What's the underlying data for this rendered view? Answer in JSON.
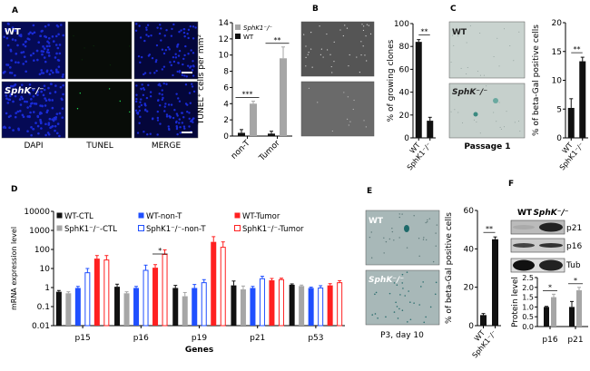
{
  "panels": {
    "A": {
      "label": "A",
      "row_labels": [
        "WT",
        "SphK⁻/⁻"
      ],
      "column_labels": [
        "DAPI",
        "TUNEL",
        "MERGE"
      ]
    },
    "B": {
      "label": "B"
    },
    "C": {
      "label": "C",
      "row_labels": [
        "WT",
        "SphK⁻/⁻"
      ],
      "caption": "Passage 1"
    },
    "D": {
      "label": "D"
    },
    "E": {
      "label": "E",
      "row_labels": [
        "WT",
        "SphK⁻/⁻"
      ],
      "caption": "P3, day 10"
    },
    "F": {
      "label": "F",
      "blot_column_labels": [
        "WT",
        "SphK⁻/⁻"
      ],
      "blot_row_labels": [
        "p21",
        "p16",
        "Tub"
      ]
    }
  },
  "colors": {
    "black": "#111111",
    "gray": "#a6a6a6",
    "blue": "#1f4fff",
    "red": "#ff2020",
    "dapi": "#1a2bd6"
  },
  "chart_data": [
    {
      "id": "A",
      "type": "bar",
      "title": "",
      "ylabel": "TUNEL⁺ cells per mm²",
      "xlabel": "",
      "ylim": [
        0,
        14
      ],
      "yticks": [
        "0",
        "2",
        "4",
        "6",
        "8",
        "10",
        "12",
        "14"
      ],
      "categories": [
        "non-T",
        "Tumor"
      ],
      "series": [
        {
          "name": "WT",
          "color": "#111111",
          "values": [
            0.4,
            0.3
          ],
          "errors": [
            0.4,
            0.3
          ]
        },
        {
          "name": "SphK1⁻/⁻",
          "color": "#a6a6a6",
          "values": [
            4.0,
            9.6
          ],
          "errors": [
            0.3,
            1.4
          ]
        }
      ],
      "legend": [
        "SphK1⁻/⁻",
        "WT"
      ],
      "legend_position": "top-left",
      "significance": [
        "***",
        "**"
      ]
    },
    {
      "id": "B",
      "type": "bar",
      "ylabel": "% of growing clones",
      "ylim": [
        0,
        100
      ],
      "yticks": [
        "0",
        "20",
        "40",
        "60",
        "80",
        "100"
      ],
      "categories": [
        "WT",
        "SphK1⁻/⁻"
      ],
      "series": [
        {
          "name": "growing clones",
          "color": "#111111",
          "values": [
            84,
            15
          ],
          "errors": [
            2,
            3
          ]
        }
      ],
      "significance": [
        "**"
      ]
    },
    {
      "id": "C",
      "type": "bar",
      "ylabel": "% of beta-Gal positive cells",
      "ylim": [
        0,
        20
      ],
      "yticks": [
        "0",
        "5",
        "10",
        "15",
        "20"
      ],
      "categories": [
        "WT",
        "SphK1⁻/⁻"
      ],
      "series": [
        {
          "name": "beta-Gal positive",
          "color": "#111111",
          "values": [
            5.2,
            13.3
          ],
          "errors": [
            1.6,
            0.7
          ]
        }
      ],
      "significance": [
        "**"
      ]
    },
    {
      "id": "D",
      "type": "bar",
      "scale": "log",
      "ylabel": "mRNA expression level",
      "xlabel": "Genes",
      "ylim": [
        0.01,
        10000
      ],
      "yticks": [
        "0.01",
        "0.1",
        "1",
        "10",
        "100",
        "1000",
        "10000"
      ],
      "categories": [
        "p15",
        "p16",
        "p19",
        "p21",
        "p53"
      ],
      "series": [
        {
          "name": "WT-CTL",
          "color": "#111111",
          "fill": true,
          "values": [
            0.6,
            1.1,
            0.95,
            1.3,
            1.4
          ],
          "errors": [
            0.1,
            0.4,
            0.35,
            0.9,
            0.15
          ]
        },
        {
          "name": "SphK1⁻/⁻-CTL",
          "color": "#a6a6a6",
          "fill": true,
          "values": [
            0.5,
            0.5,
            0.35,
            0.8,
            1.2
          ],
          "errors": [
            0.1,
            0.1,
            0.2,
            0.4,
            0.15
          ]
        },
        {
          "name": "WT-non-T",
          "color": "#1f4fff",
          "fill": true,
          "values": [
            0.95,
            0.95,
            0.95,
            0.95,
            0.95
          ],
          "errors": [
            0.2,
            0.2,
            0.5,
            0.2,
            0.1
          ]
        },
        {
          "name": "SphK1⁻/⁻-non-T",
          "color": "#1f4fff",
          "fill": false,
          "values": [
            6,
            8,
            1.8,
            2.9,
            0.95
          ],
          "errors": [
            4,
            7,
            0.8,
            1.0,
            0.3
          ]
        },
        {
          "name": "WT-Tumor",
          "color": "#ff2020",
          "fill": true,
          "values": [
            33,
            11,
            250,
            2.4,
            1.3
          ],
          "errors": [
            15,
            5,
            220,
            0.6,
            0.3
          ]
        },
        {
          "name": "SphK1⁻/⁻-Tumor",
          "color": "#ff2020",
          "fill": false,
          "values": [
            28,
            55,
            130,
            2.6,
            1.8
          ],
          "errors": [
            20,
            40,
            120,
            0.5,
            0.5
          ]
        }
      ],
      "legend_position": "top",
      "significance": [
        {
          "category": "p16",
          "text": "*"
        }
      ]
    },
    {
      "id": "E",
      "type": "bar",
      "ylabel": "% of beta-Gal positive cells",
      "ylim": [
        0,
        60
      ],
      "yticks": [
        "0",
        "20",
        "40",
        "60"
      ],
      "categories": [
        "WT",
        "SphK1⁻/⁻"
      ],
      "series": [
        {
          "name": "beta-Gal positive",
          "color": "#111111",
          "values": [
            5.5,
            45
          ],
          "errors": [
            0.8,
            1.2
          ]
        }
      ],
      "significance": [
        "**"
      ]
    },
    {
      "id": "F",
      "type": "bar",
      "ylabel": "Protein level",
      "ylim": [
        0,
        2.5
      ],
      "yticks": [
        "0.0",
        "0.5",
        "1.0",
        "1.5",
        "2.0",
        "2.5"
      ],
      "categories": [
        "p16",
        "p21"
      ],
      "series": [
        {
          "name": "WT",
          "color": "#111111",
          "values": [
            1.0,
            1.0
          ],
          "errors": [
            0.03,
            0.28
          ]
        },
        {
          "name": "SphK⁻/⁻",
          "color": "#a6a6a6",
          "values": [
            1.5,
            1.85
          ],
          "errors": [
            0.15,
            0.15
          ]
        }
      ],
      "significance": [
        "*",
        "*"
      ]
    }
  ]
}
